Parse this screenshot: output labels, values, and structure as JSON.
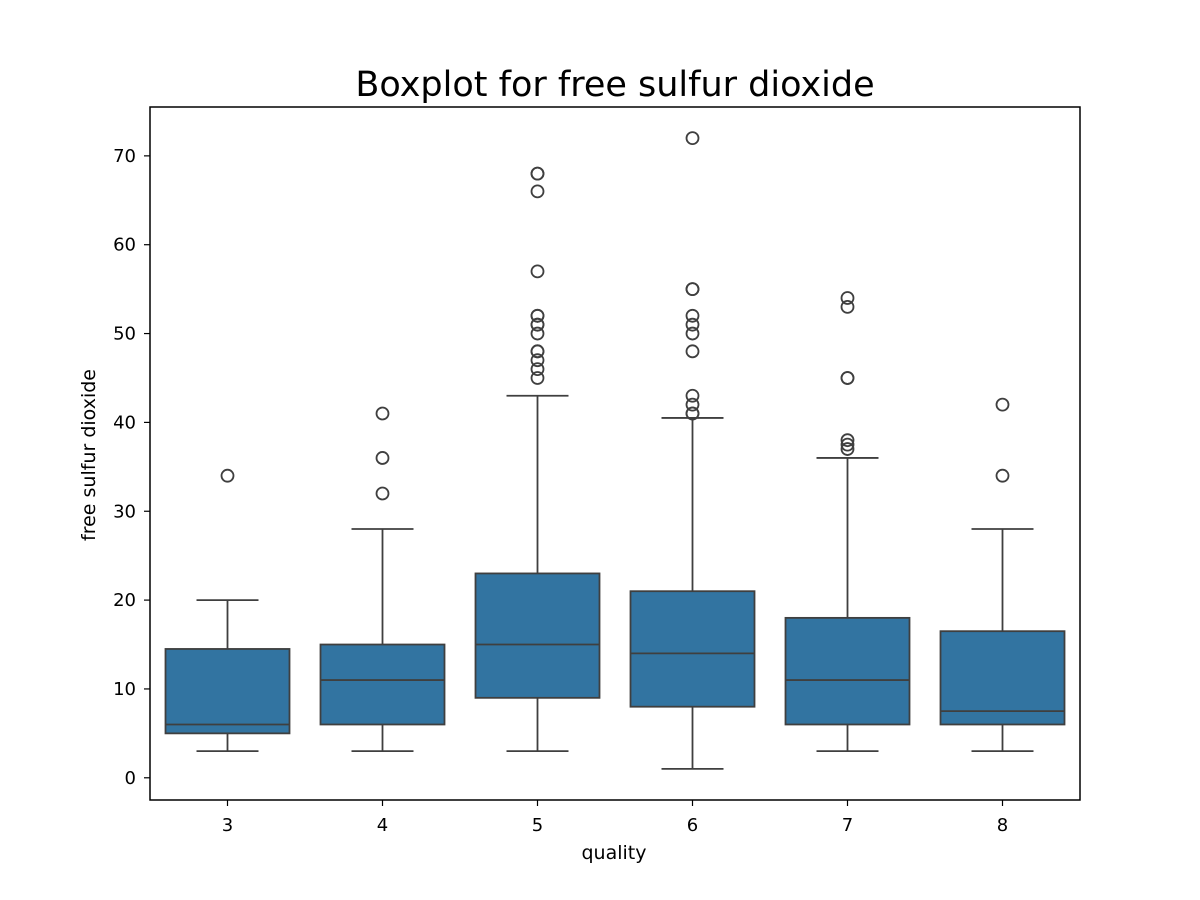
{
  "chart_data": {
    "type": "box",
    "title": "Boxplot for free sulfur dioxide",
    "xlabel": "quality",
    "ylabel": "free sulfur dioxide",
    "ylim": [
      -2.5,
      75.5
    ],
    "yticks": [
      0,
      10,
      20,
      30,
      40,
      50,
      60,
      70
    ],
    "grid": false,
    "colors": {
      "box_fill": "#3274a1",
      "line": "#3f3f3f"
    },
    "categories": [
      "3",
      "4",
      "5",
      "6",
      "7",
      "8"
    ],
    "boxes": [
      {
        "category": "3",
        "whisker_low": 3,
        "q1": 5,
        "median": 6,
        "q3": 14.5,
        "whisker_high": 20,
        "outliers": [
          34
        ]
      },
      {
        "category": "4",
        "whisker_low": 3,
        "q1": 6,
        "median": 11,
        "q3": 15,
        "whisker_high": 28,
        "outliers": [
          32,
          36,
          41
        ]
      },
      {
        "category": "5",
        "whisker_low": 3,
        "q1": 9,
        "median": 15,
        "q3": 23,
        "whisker_high": 43,
        "outliers": [
          45,
          46,
          47,
          48,
          48,
          50,
          51,
          51,
          52,
          52,
          57,
          66,
          68,
          68
        ]
      },
      {
        "category": "6",
        "whisker_low": 1,
        "q1": 8,
        "median": 14,
        "q3": 21,
        "whisker_high": 40.5,
        "outliers": [
          41,
          41,
          42,
          43,
          48,
          50,
          51,
          52,
          55,
          55,
          72
        ]
      },
      {
        "category": "7",
        "whisker_low": 3,
        "q1": 6,
        "median": 11,
        "q3": 18,
        "whisker_high": 36,
        "outliers": [
          37,
          37.5,
          38,
          45,
          45,
          53,
          54
        ]
      },
      {
        "category": "8",
        "whisker_low": 3,
        "q1": 6,
        "median": 7.5,
        "q3": 16.5,
        "whisker_high": 28,
        "outliers": [
          34,
          42
        ]
      }
    ]
  }
}
